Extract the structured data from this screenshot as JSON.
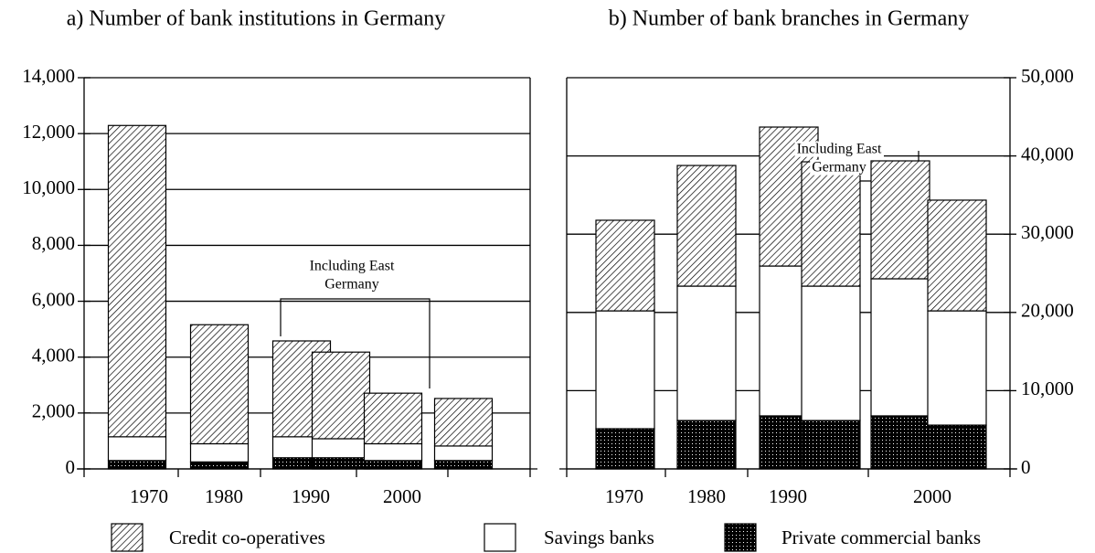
{
  "chart_data": [
    {
      "type": "bar",
      "stacked": true,
      "title": "a) Number of bank institutions in Germany",
      "categories": [
        "1970",
        "1980",
        "1990",
        null,
        "2000",
        null
      ],
      "series": [
        {
          "name": "Private commercial banks",
          "color": "#000000",
          "pattern": "dots",
          "values": [
            300,
            250,
            400,
            400,
            300,
            300
          ]
        },
        {
          "name": "Savings banks",
          "color": "#ffffff",
          "pattern": "none",
          "values": [
            850,
            650,
            750,
            680,
            600,
            520
          ]
        },
        {
          "name": "Credit co-operatives",
          "color": "#ffffff",
          "pattern": "hatch",
          "values": [
            11140,
            4260,
            3430,
            3100,
            1810,
            1700
          ]
        }
      ],
      "ylim": [
        0,
        14000
      ],
      "yticks": [
        0,
        {
          "value": 2000,
          "label": "2,000"
        },
        {
          "value": 4000,
          "label": "4,000"
        },
        {
          "value": 6000,
          "label": "6,000"
        },
        {
          "value": 8000,
          "label": "8,000"
        },
        {
          "value": 10000,
          "label": "10,000"
        },
        {
          "value": 12000,
          "label": "12,000"
        },
        {
          "value": 14000,
          "label": "14,000"
        }
      ],
      "axis_side": "left",
      "grid": true,
      "annotation": [
        "Including East",
        "Germany"
      ]
    },
    {
      "type": "bar",
      "stacked": true,
      "title": "b) Number of bank branches in Germany",
      "categories": [
        "1970",
        "1980",
        "1990",
        null,
        "2000",
        null
      ],
      "series": [
        {
          "name": "Private commercial banks",
          "color": "#000000",
          "pattern": "dots",
          "values": [
            5140,
            6190,
            6780,
            6190,
            6780,
            5600
          ]
        },
        {
          "name": "Savings banks",
          "color": "#ffffff",
          "pattern": "none",
          "values": [
            15060,
            17170,
            19150,
            17170,
            17520,
            14600
          ]
        },
        {
          "name": "Credit co-operatives",
          "color": "#ffffff",
          "pattern": "hatch",
          "values": [
            11580,
            15420,
            17760,
            15890,
            15070,
            14150
          ]
        }
      ],
      "ylim": [
        0,
        50000
      ],
      "yticks": [
        0,
        {
          "value": 10000,
          "label": "10,000"
        },
        {
          "value": 20000,
          "label": "20,000"
        },
        {
          "value": 30000,
          "label": "30,000"
        },
        {
          "value": 40000,
          "label": "40,000"
        },
        {
          "value": 50000,
          "label": "50,000"
        }
      ],
      "axis_side": "right",
      "grid": true,
      "annotation": [
        "Including East",
        "Germany"
      ]
    }
  ]
}
